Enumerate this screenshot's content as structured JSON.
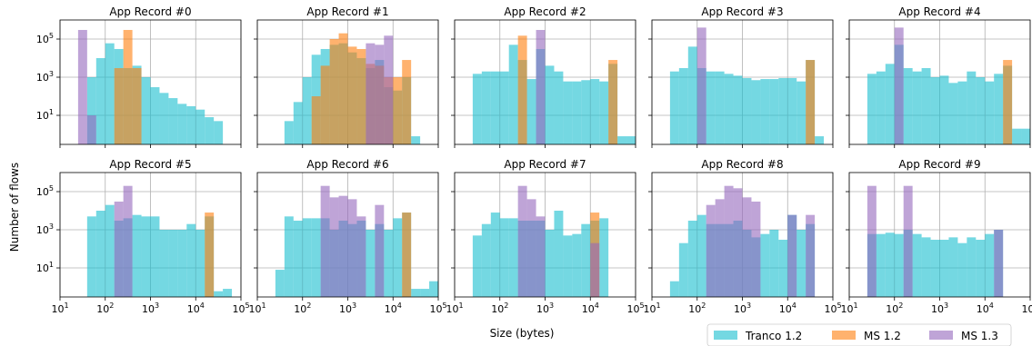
{
  "figure": {
    "ylabel": "Number of flows",
    "xlabel": "Size (bytes)",
    "legend": {
      "placement": "bottom-right",
      "entries": [
        {
          "name": "Tranco 1.2",
          "color": "#17becf"
        },
        {
          "name": "MS 1.2",
          "color": "#ff7f0e"
        },
        {
          "name": "MS 1.3",
          "color": "#9467bd"
        }
      ]
    },
    "x_ticks": [
      {
        "base": "10",
        "exp": "1"
      },
      {
        "base": "10",
        "exp": "2"
      },
      {
        "base": "10",
        "exp": "3"
      },
      {
        "base": "10",
        "exp": "4"
      },
      {
        "base": "10",
        "exp": "5"
      }
    ],
    "y_ticks": [
      {
        "base": "10",
        "exp": "1"
      },
      {
        "base": "10",
        "exp": "3"
      },
      {
        "base": "10",
        "exp": "5"
      }
    ]
  },
  "chart_data": [
    {
      "type": "bar",
      "title": "App Record #0",
      "x_scale": "log",
      "y_scale": "log",
      "xlim": [
        10,
        100000
      ],
      "ylim": [
        0.3,
        1000000
      ],
      "grid": true,
      "bin_log_edges_start": 1.2,
      "bin_log_width": 0.2,
      "series": [
        {
          "name": "Tranco 1.2",
          "values": [
            0,
            0,
            1000,
            10000,
            60000,
            30000,
            3000,
            4000,
            1000,
            300,
            150,
            80,
            40,
            30,
            20,
            8,
            5
          ]
        },
        {
          "name": "MS 1.2",
          "values": [
            0,
            0,
            0,
            0,
            0,
            3000,
            300000,
            3000,
            0,
            0,
            0,
            0,
            0,
            0,
            0,
            0,
            0
          ]
        },
        {
          "name": "MS 1.3",
          "values": [
            0,
            300000,
            10,
            0,
            0,
            0,
            0,
            0,
            0,
            0,
            0,
            0,
            0,
            0,
            0,
            0,
            0
          ]
        }
      ]
    },
    {
      "type": "bar",
      "title": "App Record #1",
      "x_scale": "log",
      "y_scale": "log",
      "xlim": [
        10,
        100000
      ],
      "ylim": [
        0.3,
        1000000
      ],
      "grid": true,
      "bin_log_edges_start": 1.2,
      "bin_log_width": 0.2,
      "series": [
        {
          "name": "Tranco 1.2",
          "values": [
            0,
            0,
            5,
            50,
            1000,
            15000,
            30000,
            50000,
            60000,
            20000,
            10000,
            3000,
            8000,
            300,
            200,
            1000,
            0.8
          ]
        },
        {
          "name": "MS 1.2",
          "values": [
            0,
            0,
            0,
            0,
            0,
            100,
            4000,
            100000,
            200000,
            40000,
            30000,
            5000,
            4000,
            1000,
            1000,
            8000,
            0
          ]
        },
        {
          "name": "MS 1.3",
          "values": [
            0,
            0,
            0,
            0,
            0,
            0,
            0,
            0,
            0,
            0,
            0,
            60000,
            50000,
            150000,
            0,
            0,
            0
          ]
        }
      ]
    },
    {
      "type": "bar",
      "title": "App Record #2",
      "x_scale": "log",
      "y_scale": "log",
      "xlim": [
        10,
        100000
      ],
      "ylim": [
        0.3,
        1000000
      ],
      "grid": true,
      "bin_log_edges_start": 1.2,
      "bin_log_width": 0.2,
      "series": [
        {
          "name": "Tranco 1.2",
          "values": [
            0,
            1500,
            2000,
            2000,
            2000,
            50000,
            8000,
            800,
            30000,
            4000,
            2000,
            600,
            600,
            700,
            800,
            600,
            5000,
            0.8,
            0.8
          ]
        },
        {
          "name": "MS 1.2",
          "values": [
            0,
            0,
            0,
            0,
            0,
            0,
            150000,
            0,
            0,
            0,
            0,
            0,
            0,
            0,
            0,
            0,
            8000,
            0,
            0
          ]
        },
        {
          "name": "MS 1.3",
          "values": [
            0,
            0,
            0,
            0,
            0,
            0,
            0,
            0,
            300000,
            0,
            0,
            0,
            0,
            0,
            0,
            0,
            0,
            0,
            0
          ]
        }
      ]
    },
    {
      "type": "bar",
      "title": "App Record #3",
      "x_scale": "log",
      "y_scale": "log",
      "xlim": [
        10,
        100000
      ],
      "ylim": [
        0.3,
        1000000
      ],
      "grid": true,
      "bin_log_edges_start": 1.2,
      "bin_log_width": 0.2,
      "series": [
        {
          "name": "Tranco 1.2",
          "values": [
            0,
            2000,
            3000,
            40000,
            3000,
            2000,
            2000,
            1500,
            1200,
            900,
            700,
            800,
            800,
            900,
            900,
            600,
            8000,
            0.8
          ]
        },
        {
          "name": "MS 1.2",
          "values": [
            0,
            0,
            0,
            0,
            0,
            0,
            0,
            0,
            0,
            0,
            0,
            0,
            0,
            0,
            0,
            0,
            8000,
            0
          ]
        },
        {
          "name": "MS 1.3",
          "values": [
            0,
            0,
            0,
            0,
            400000,
            0,
            0,
            0,
            0,
            0,
            0,
            0,
            0,
            0,
            0,
            0,
            0,
            0
          ]
        }
      ]
    },
    {
      "type": "bar",
      "title": "App Record #4",
      "x_scale": "log",
      "y_scale": "log",
      "xlim": [
        10,
        100000
      ],
      "ylim": [
        0.3,
        1000000
      ],
      "grid": true,
      "bin_log_edges_start": 1.2,
      "bin_log_width": 0.2,
      "series": [
        {
          "name": "Tranco 1.2",
          "values": [
            0,
            1500,
            2000,
            5000,
            50000,
            3000,
            2000,
            3000,
            1000,
            1200,
            500,
            600,
            2000,
            1000,
            600,
            1500,
            4000,
            2,
            2
          ]
        },
        {
          "name": "MS 1.2",
          "values": [
            0,
            0,
            0,
            0,
            0,
            0,
            0,
            0,
            0,
            0,
            0,
            0,
            0,
            0,
            0,
            0,
            8000,
            0,
            0
          ]
        },
        {
          "name": "MS 1.3",
          "values": [
            0,
            0,
            0,
            0,
            400000,
            0,
            0,
            0,
            0,
            0,
            0,
            0,
            0,
            0,
            0,
            0,
            0,
            0,
            0
          ]
        }
      ]
    },
    {
      "type": "bar",
      "title": "App Record #5",
      "x_scale": "log",
      "y_scale": "log",
      "xlim": [
        10,
        100000
      ],
      "ylim": [
        0.3,
        1000000
      ],
      "grid": true,
      "bin_log_edges_start": 1.2,
      "bin_log_width": 0.2,
      "series": [
        {
          "name": "Tranco 1.2",
          "values": [
            0,
            0,
            5000,
            10000,
            20000,
            3000,
            4000,
            6000,
            5000,
            5000,
            1000,
            1000,
            1000,
            2000,
            1000,
            5000,
            0.6,
            0.8
          ]
        },
        {
          "name": "MS 1.2",
          "values": [
            0,
            0,
            0,
            0,
            0,
            0,
            0,
            0,
            0,
            0,
            0,
            0,
            0,
            0,
            0,
            8000,
            0,
            0
          ]
        },
        {
          "name": "MS 1.3",
          "values": [
            0,
            0,
            0,
            0,
            0,
            30000,
            200000,
            0,
            0,
            0,
            0,
            0,
            0,
            0,
            0,
            0,
            0,
            0
          ]
        }
      ]
    },
    {
      "type": "bar",
      "title": "App Record #6",
      "x_scale": "log",
      "y_scale": "log",
      "xlim": [
        10,
        100000
      ],
      "ylim": [
        0.3,
        1000000
      ],
      "grid": true,
      "bin_log_edges_start": 1.2,
      "bin_log_width": 0.2,
      "series": [
        {
          "name": "Tranco 1.2",
          "values": [
            0,
            8,
            5000,
            3000,
            4000,
            4000,
            4000,
            1000,
            3000,
            2000,
            3000,
            1000,
            2000,
            1000,
            4000,
            8000,
            0.8,
            0.8,
            2
          ]
        },
        {
          "name": "MS 1.2",
          "values": [
            0,
            0,
            0,
            0,
            0,
            0,
            0,
            0,
            0,
            0,
            0,
            0,
            0,
            0,
            0,
            8000,
            0,
            0,
            0
          ]
        },
        {
          "name": "MS 1.3",
          "values": [
            0,
            0,
            0,
            0,
            0,
            0,
            200000,
            50000,
            60000,
            40000,
            5000,
            0,
            20000,
            0,
            0,
            0,
            0,
            0,
            0
          ]
        }
      ]
    },
    {
      "type": "bar",
      "title": "App Record #7",
      "x_scale": "log",
      "y_scale": "log",
      "xlim": [
        10,
        100000
      ],
      "ylim": [
        0.3,
        1000000
      ],
      "grid": true,
      "bin_log_edges_start": 1.2,
      "bin_log_width": 0.2,
      "series": [
        {
          "name": "Tranco 1.2",
          "values": [
            0,
            500,
            2000,
            8000,
            4000,
            4000,
            3000,
            3000,
            3000,
            1000,
            10000,
            500,
            600,
            2000,
            3000,
            4000
          ]
        },
        {
          "name": "MS 1.2",
          "values": [
            0,
            0,
            0,
            0,
            0,
            0,
            0,
            0,
            0,
            0,
            0,
            0,
            0,
            0,
            8000,
            0
          ]
        },
        {
          "name": "MS 1.3",
          "values": [
            0,
            0,
            0,
            0,
            0,
            0,
            200000,
            40000,
            5000,
            0,
            0,
            0,
            0,
            0,
            200,
            0
          ]
        }
      ]
    },
    {
      "type": "bar",
      "title": "App Record #8",
      "x_scale": "log",
      "y_scale": "log",
      "xlim": [
        10,
        100000
      ],
      "ylim": [
        0.3,
        1000000
      ],
      "grid": true,
      "bin_log_edges_start": 1.2,
      "bin_log_width": 0.2,
      "series": [
        {
          "name": "Tranco 1.2",
          "values": [
            0,
            2,
            200,
            3000,
            6000,
            2000,
            2000,
            2000,
            3000,
            1000,
            400,
            600,
            1000,
            300,
            6000,
            1000,
            2000
          ]
        },
        {
          "name": "MS 1.2",
          "values": [
            0,
            0,
            0,
            0,
            0,
            0,
            0,
            0,
            0,
            0,
            0,
            0,
            0,
            0,
            0,
            0,
            0
          ]
        },
        {
          "name": "MS 1.3",
          "values": [
            0,
            0,
            0,
            0,
            0,
            20000,
            40000,
            200000,
            150000,
            50000,
            30000,
            0,
            0,
            0,
            6000,
            0,
            6000
          ]
        }
      ]
    },
    {
      "type": "bar",
      "title": "App Record #9",
      "x_scale": "log",
      "y_scale": "log",
      "xlim": [
        10,
        100000
      ],
      "ylim": [
        0.3,
        1000000
      ],
      "grid": true,
      "bin_log_edges_start": 1.2,
      "bin_log_width": 0.2,
      "series": [
        {
          "name": "Tranco 1.2",
          "values": [
            0,
            600,
            600,
            700,
            600,
            1000,
            600,
            400,
            300,
            300,
            400,
            200,
            400,
            300,
            600,
            1000
          ]
        },
        {
          "name": "MS 1.2",
          "values": [
            0,
            0,
            0,
            0,
            0,
            0,
            0,
            0,
            0,
            0,
            0,
            0,
            0,
            0,
            0,
            0
          ]
        },
        {
          "name": "MS 1.3",
          "values": [
            0,
            200000,
            0,
            0,
            0,
            200000,
            0,
            0,
            0,
            0,
            0,
            0,
            0,
            0,
            0,
            1000
          ]
        }
      ]
    }
  ]
}
